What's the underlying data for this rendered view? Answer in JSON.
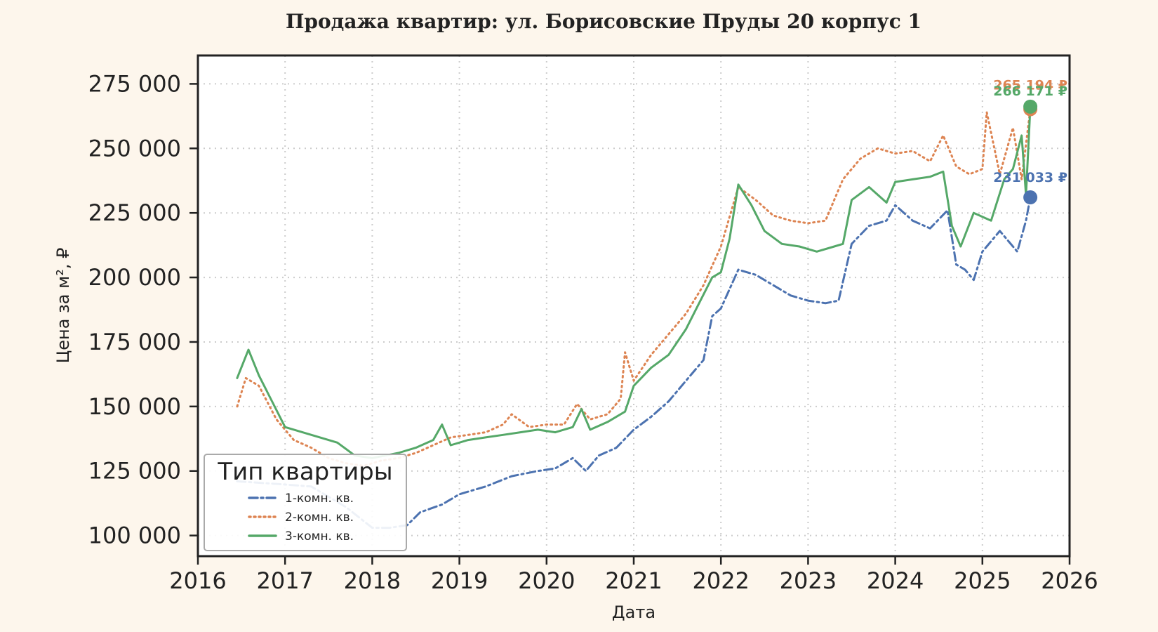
{
  "chart_data": {
    "type": "line",
    "title": "Продажа квартир: ул. Борисовские Пруды 20 корпус 1",
    "xlabel": "Дата",
    "ylabel": "Цена за м², ₽",
    "xlim": [
      2016,
      2026
    ],
    "ylim": [
      92000,
      286000
    ],
    "x_ticks": [
      2016,
      2017,
      2018,
      2019,
      2020,
      2021,
      2022,
      2023,
      2024,
      2025,
      2026
    ],
    "x_tick_labels": [
      "2016",
      "2017",
      "2018",
      "2019",
      "2020",
      "2021",
      "2022",
      "2023",
      "2024",
      "2025",
      "2026"
    ],
    "y_ticks": [
      100000,
      125000,
      150000,
      175000,
      200000,
      225000,
      250000,
      275000
    ],
    "y_tick_labels": [
      "100 000",
      "125 000",
      "150 000",
      "175 000",
      "200 000",
      "225 000",
      "250 000",
      "275 000"
    ],
    "grid": true,
    "legend": {
      "title": "Тип квартиры",
      "placement": "bottom-left"
    },
    "series": [
      {
        "name": "1-комн. кв.",
        "color": "#4c72b0",
        "dash": "dashdot",
        "end_label": "231 033 ₽",
        "end_value": 231033,
        "x": [
          2016.45,
          2016.9,
          2017.3,
          2017.7,
          2018.0,
          2018.2,
          2018.4,
          2018.55,
          2018.8,
          2019.0,
          2019.3,
          2019.6,
          2019.9,
          2020.1,
          2020.3,
          2020.45,
          2020.6,
          2020.8,
          2021.0,
          2021.2,
          2021.4,
          2021.6,
          2021.8,
          2021.9,
          2022.0,
          2022.2,
          2022.4,
          2022.6,
          2022.8,
          2023.0,
          2023.2,
          2023.35,
          2023.5,
          2023.7,
          2023.9,
          2024.0,
          2024.2,
          2024.4,
          2024.6,
          2024.7,
          2024.8,
          2024.9,
          2025.0,
          2025.2,
          2025.4,
          2025.5,
          2025.55
        ],
        "y": [
          121000,
          120000,
          119000,
          111000,
          103000,
          103000,
          104000,
          109000,
          112000,
          116000,
          119000,
          123000,
          125000,
          126000,
          130000,
          125000,
          131000,
          134000,
          141000,
          146000,
          152000,
          160000,
          168000,
          185000,
          188000,
          203000,
          201000,
          197000,
          193000,
          191000,
          190000,
          191000,
          213000,
          220000,
          222000,
          228000,
          222000,
          219000,
          226000,
          205000,
          203000,
          199000,
          210000,
          218000,
          210000,
          222000,
          231033
        ]
      },
      {
        "name": "2-комн. кв.",
        "color": "#dd8452",
        "dash": "dotted",
        "end_label": "265 194 ₽",
        "end_value": 265194,
        "x": [
          2016.45,
          2016.55,
          2016.7,
          2016.9,
          2017.1,
          2017.3,
          2017.5,
          2017.7,
          2017.9,
          2018.1,
          2018.3,
          2018.5,
          2018.7,
          2018.9,
          2019.1,
          2019.3,
          2019.5,
          2019.6,
          2019.8,
          2020.0,
          2020.2,
          2020.35,
          2020.5,
          2020.7,
          2020.85,
          2020.9,
          2021.0,
          2021.2,
          2021.4,
          2021.6,
          2021.8,
          2022.0,
          2022.2,
          2022.4,
          2022.6,
          2022.8,
          2023.0,
          2023.2,
          2023.4,
          2023.6,
          2023.8,
          2024.0,
          2024.2,
          2024.4,
          2024.55,
          2024.7,
          2024.85,
          2025.0,
          2025.05,
          2025.2,
          2025.35,
          2025.45,
          2025.55
        ],
        "y": [
          150000,
          161000,
          158000,
          145000,
          137000,
          134000,
          130000,
          128000,
          127000,
          129000,
          130000,
          132000,
          135000,
          138000,
          139000,
          140000,
          143000,
          147000,
          142000,
          143000,
          143000,
          151000,
          145000,
          147000,
          153000,
          171000,
          160000,
          170000,
          178000,
          186000,
          197000,
          212000,
          235000,
          230000,
          224000,
          222000,
          221000,
          222000,
          238000,
          246000,
          250000,
          248000,
          249000,
          245000,
          255000,
          243000,
          240000,
          242000,
          264000,
          240000,
          258000,
          238000,
          265194
        ]
      },
      {
        "name": "3-комн. кв.",
        "color": "#55a868",
        "dash": "solid",
        "end_label": "266 171 ₽",
        "end_value": 266171,
        "x": [
          2016.45,
          2016.58,
          2016.7,
          2016.85,
          2017.0,
          2017.2,
          2017.4,
          2017.6,
          2017.8,
          2018.0,
          2018.15,
          2018.3,
          2018.5,
          2018.7,
          2018.8,
          2018.9,
          2019.1,
          2019.3,
          2019.5,
          2019.7,
          2019.9,
          2020.1,
          2020.3,
          2020.4,
          2020.5,
          2020.7,
          2020.9,
          2021.0,
          2021.2,
          2021.4,
          2021.6,
          2021.75,
          2021.9,
          2022.0,
          2022.1,
          2022.2,
          2022.35,
          2022.5,
          2022.7,
          2022.9,
          2023.1,
          2023.3,
          2023.4,
          2023.5,
          2023.7,
          2023.9,
          2024.0,
          2024.2,
          2024.4,
          2024.55,
          2024.65,
          2024.75,
          2024.9,
          2025.1,
          2025.25,
          2025.35,
          2025.45,
          2025.5,
          2025.55
        ],
        "y": [
          161000,
          172000,
          162000,
          152000,
          142000,
          140000,
          138000,
          136000,
          131000,
          130000,
          131000,
          132000,
          134000,
          137000,
          143000,
          135000,
          137000,
          138000,
          139000,
          140000,
          141000,
          140000,
          142000,
          149000,
          141000,
          144000,
          148000,
          158000,
          165000,
          170000,
          180000,
          190000,
          200000,
          202000,
          215000,
          236000,
          228000,
          218000,
          213000,
          212000,
          210000,
          212000,
          213000,
          230000,
          235000,
          229000,
          237000,
          238000,
          239000,
          241000,
          220000,
          212000,
          225000,
          222000,
          238000,
          242000,
          255000,
          232000,
          266171
        ]
      }
    ]
  }
}
